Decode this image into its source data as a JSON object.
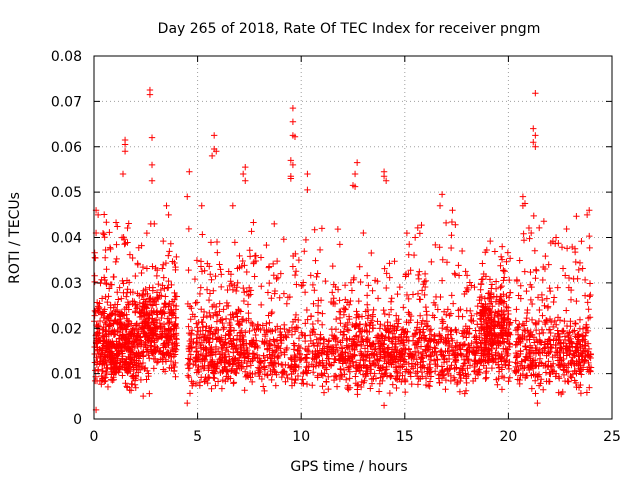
{
  "chart_data": {
    "type": "scatter",
    "title": "Day 265 of 2018, Rate Of TEC Index for receiver pngm",
    "xlabel": "GPS time / hours",
    "ylabel": "ROTI / TECUs",
    "xlim": [
      0,
      25
    ],
    "ylim": [
      0,
      0.08
    ],
    "xticks": [
      0,
      5,
      10,
      15,
      20,
      25
    ],
    "yticks": [
      0,
      0.01,
      0.02,
      0.03,
      0.04,
      0.05,
      0.06,
      0.07,
      0.08
    ],
    "xtick_labels": [
      "0",
      "5",
      "10",
      "15",
      "20",
      "25"
    ],
    "ytick_labels": [
      "0",
      "0.01",
      "0.02",
      "0.03",
      "0.04",
      "0.05",
      "0.06",
      "0.07",
      "0.08"
    ],
    "grid": true,
    "marker": "+",
    "series_color": "#ff0000",
    "point_clusters": [
      {
        "x_range": [
          0.0,
          2.3
        ],
        "y_range": [
          0.006,
          0.026
        ],
        "count": 420
      },
      {
        "x_range": [
          0.0,
          4.0
        ],
        "y_range": [
          0.004,
          0.046
        ],
        "count": 260
      },
      {
        "x_range": [
          2.3,
          4.0
        ],
        "y_range": [
          0.008,
          0.03
        ],
        "count": 260
      },
      {
        "x_range": [
          4.5,
          7.7
        ],
        "y_range": [
          0.006,
          0.024
        ],
        "count": 320
      },
      {
        "x_range": [
          4.5,
          7.7
        ],
        "y_range": [
          0.004,
          0.045
        ],
        "count": 140
      },
      {
        "x_range": [
          7.7,
          12.0
        ],
        "y_range": [
          0.006,
          0.022
        ],
        "count": 300
      },
      {
        "x_range": [
          7.7,
          12.0
        ],
        "y_range": [
          0.004,
          0.044
        ],
        "count": 140
      },
      {
        "x_range": [
          12.0,
          15.0
        ],
        "y_range": [
          0.005,
          0.024
        ],
        "count": 300
      },
      {
        "x_range": [
          12.0,
          15.0
        ],
        "y_range": [
          0.003,
          0.04
        ],
        "count": 120
      },
      {
        "x_range": [
          15.0,
          18.6
        ],
        "y_range": [
          0.005,
          0.024
        ],
        "count": 320
      },
      {
        "x_range": [
          15.0,
          18.6
        ],
        "y_range": [
          0.004,
          0.046
        ],
        "count": 120
      },
      {
        "x_range": [
          18.6,
          20.1
        ],
        "y_range": [
          0.007,
          0.03
        ],
        "count": 280
      },
      {
        "x_range": [
          18.6,
          20.1
        ],
        "y_range": [
          0.005,
          0.042
        ],
        "count": 80
      },
      {
        "x_range": [
          20.3,
          24.0
        ],
        "y_range": [
          0.005,
          0.024
        ],
        "count": 360
      },
      {
        "x_range": [
          20.3,
          24.0
        ],
        "y_range": [
          0.004,
          0.046
        ],
        "count": 130
      }
    ],
    "outliers": [
      {
        "x": 2.7,
        "y": 0.0725
      },
      {
        "x": 2.7,
        "y": 0.0715
      },
      {
        "x": 2.8,
        "y": 0.062
      },
      {
        "x": 1.5,
        "y": 0.0615
      },
      {
        "x": 1.5,
        "y": 0.0605
      },
      {
        "x": 1.5,
        "y": 0.059
      },
      {
        "x": 1.4,
        "y": 0.054
      },
      {
        "x": 2.8,
        "y": 0.056
      },
      {
        "x": 2.8,
        "y": 0.0525
      },
      {
        "x": 5.8,
        "y": 0.0625
      },
      {
        "x": 5.8,
        "y": 0.0595
      },
      {
        "x": 5.9,
        "y": 0.059
      },
      {
        "x": 5.7,
        "y": 0.058
      },
      {
        "x": 4.6,
        "y": 0.0545
      },
      {
        "x": 4.5,
        "y": 0.049
      },
      {
        "x": 5.2,
        "y": 0.047
      },
      {
        "x": 7.3,
        "y": 0.0555
      },
      {
        "x": 7.2,
        "y": 0.054
      },
      {
        "x": 7.3,
        "y": 0.0525
      },
      {
        "x": 6.7,
        "y": 0.047
      },
      {
        "x": 9.6,
        "y": 0.0685
      },
      {
        "x": 9.6,
        "y": 0.0655
      },
      {
        "x": 9.6,
        "y": 0.0625
      },
      {
        "x": 9.7,
        "y": 0.0622
      },
      {
        "x": 9.5,
        "y": 0.057
      },
      {
        "x": 9.6,
        "y": 0.056
      },
      {
        "x": 9.5,
        "y": 0.0535
      },
      {
        "x": 9.5,
        "y": 0.053
      },
      {
        "x": 10.3,
        "y": 0.054
      },
      {
        "x": 10.3,
        "y": 0.0505
      },
      {
        "x": 12.7,
        "y": 0.0565
      },
      {
        "x": 12.6,
        "y": 0.054
      },
      {
        "x": 12.5,
        "y": 0.0515
      },
      {
        "x": 12.6,
        "y": 0.0512
      },
      {
        "x": 14.0,
        "y": 0.0545
      },
      {
        "x": 14.0,
        "y": 0.0535
      },
      {
        "x": 14.1,
        "y": 0.0525
      },
      {
        "x": 16.8,
        "y": 0.0495
      },
      {
        "x": 16.7,
        "y": 0.047
      },
      {
        "x": 20.7,
        "y": 0.049
      },
      {
        "x": 20.8,
        "y": 0.0475
      },
      {
        "x": 20.7,
        "y": 0.047
      },
      {
        "x": 21.3,
        "y": 0.0718
      },
      {
        "x": 21.2,
        "y": 0.064
      },
      {
        "x": 21.3,
        "y": 0.0625
      },
      {
        "x": 21.2,
        "y": 0.061
      },
      {
        "x": 21.3,
        "y": 0.06
      },
      {
        "x": 21.1,
        "y": 0.041
      },
      {
        "x": 23.9,
        "y": 0.046
      },
      {
        "x": 23.8,
        "y": 0.045
      },
      {
        "x": 0.1,
        "y": 0.046
      },
      {
        "x": 0.2,
        "y": 0.045
      },
      {
        "x": 0.1,
        "y": 0.041
      },
      {
        "x": 3.6,
        "y": 0.045
      },
      {
        "x": 3.5,
        "y": 0.047
      },
      {
        "x": 17.3,
        "y": 0.046
      },
      {
        "x": 0.1,
        "y": 0.002
      },
      {
        "x": 14.0,
        "y": 0.003
      },
      {
        "x": 4.5,
        "y": 0.0035
      },
      {
        "x": 21.4,
        "y": 0.0035
      },
      {
        "x": 15.5,
        "y": 0.04
      },
      {
        "x": 19.7,
        "y": 0.038
      },
      {
        "x": 8.7,
        "y": 0.043
      },
      {
        "x": 11.0,
        "y": 0.042
      },
      {
        "x": 13.0,
        "y": 0.041
      },
      {
        "x": 22.3,
        "y": 0.04
      }
    ]
  }
}
